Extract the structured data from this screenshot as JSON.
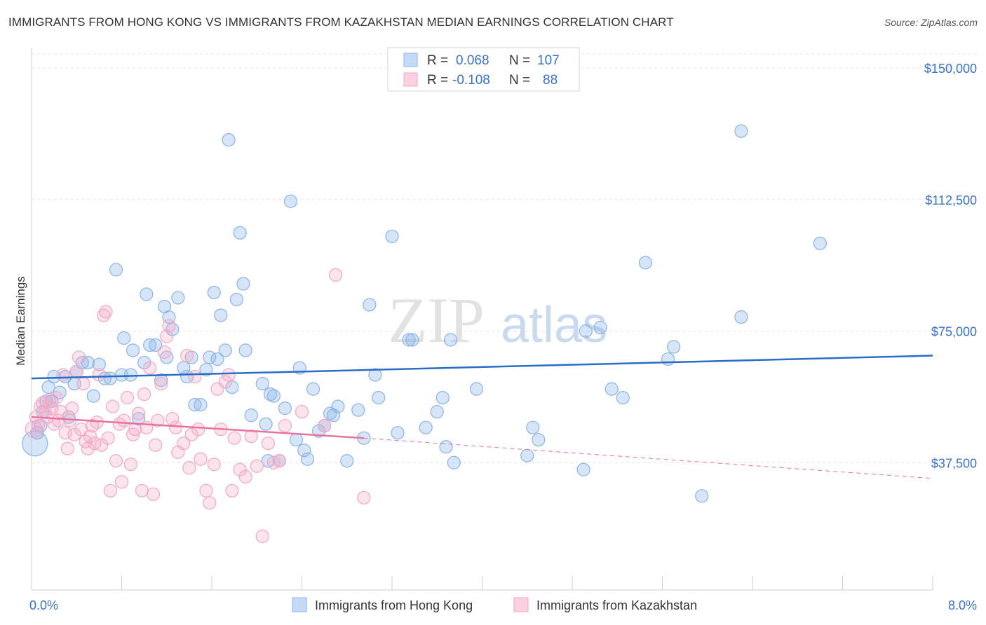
{
  "header": {
    "title": "IMMIGRANTS FROM HONG KONG VS IMMIGRANTS FROM KAZAKHSTAN MEDIAN EARNINGS CORRELATION CHART",
    "source": "Source: ZipAtlas.com"
  },
  "watermark": "ZIPatlas",
  "legend_box": {
    "rows": [
      {
        "r_label": "R =",
        "r_value": "0.068",
        "n_label": "N =",
        "n_value": "107"
      },
      {
        "r_label": "R =",
        "r_value": "-0.108",
        "n_label": "N =",
        "n_value": "88"
      }
    ]
  },
  "chart_data": {
    "type": "scatter",
    "ylabel": "Median Earnings",
    "xlim": [
      0,
      8
    ],
    "ylim": [
      0,
      155000
    ],
    "x_tick_labels": [
      {
        "x": 0,
        "label": "0.0%"
      },
      {
        "x": 8,
        "label": "8.0%"
      }
    ],
    "y_ticks": [
      {
        "y": 150000,
        "label": "$150,000"
      },
      {
        "y": 112500,
        "label": "$112,500"
      },
      {
        "y": 75000,
        "label": "$75,000"
      },
      {
        "y": 37500,
        "label": "$37,500"
      }
    ],
    "grid": true,
    "legend_position": "bottom",
    "series": [
      {
        "name": "Immigrants from Hong Kong",
        "color": "#8ab4e8",
        "trend_color": "#2a6dc9",
        "trend": {
          "x": [
            0,
            8
          ],
          "y": [
            61500,
            68000
          ]
        },
        "points": [
          [
            0.03,
            43000
          ],
          [
            0.05,
            46000
          ],
          [
            0.08,
            48000
          ],
          [
            0.1,
            52000
          ],
          [
            0.13,
            55000
          ],
          [
            0.15,
            59000
          ],
          [
            0.18,
            55000
          ],
          [
            0.2,
            62000
          ],
          [
            0.25,
            57500
          ],
          [
            0.3,
            62000
          ],
          [
            0.33,
            50500
          ],
          [
            0.38,
            60000
          ],
          [
            0.4,
            63500
          ],
          [
            0.45,
            66000
          ],
          [
            0.5,
            66000
          ],
          [
            0.55,
            56500
          ],
          [
            0.6,
            65500
          ],
          [
            0.65,
            61500
          ],
          [
            0.7,
            61500
          ],
          [
            0.75,
            92500
          ],
          [
            0.8,
            62500
          ],
          [
            0.82,
            73000
          ],
          [
            0.88,
            62500
          ],
          [
            0.9,
            69500
          ],
          [
            0.95,
            50000
          ],
          [
            1.0,
            66000
          ],
          [
            1.02,
            85500
          ],
          [
            1.05,
            71000
          ],
          [
            1.1,
            71000
          ],
          [
            1.15,
            61000
          ],
          [
            1.18,
            82000
          ],
          [
            1.2,
            67500
          ],
          [
            1.22,
            79000
          ],
          [
            1.25,
            75500
          ],
          [
            1.3,
            84500
          ],
          [
            1.35,
            64500
          ],
          [
            1.38,
            62000
          ],
          [
            1.42,
            67500
          ],
          [
            1.45,
            54000
          ],
          [
            1.5,
            54000
          ],
          [
            1.55,
            64000
          ],
          [
            1.58,
            67500
          ],
          [
            1.62,
            86000
          ],
          [
            1.65,
            67000
          ],
          [
            1.68,
            79500
          ],
          [
            1.72,
            69500
          ],
          [
            1.75,
            129500
          ],
          [
            1.78,
            59000
          ],
          [
            1.82,
            84000
          ],
          [
            1.85,
            103000
          ],
          [
            1.88,
            88500
          ],
          [
            1.9,
            69500
          ],
          [
            1.95,
            51000
          ],
          [
            2.05,
            60000
          ],
          [
            2.08,
            48500
          ],
          [
            2.1,
            38000
          ],
          [
            2.12,
            57000
          ],
          [
            2.15,
            56500
          ],
          [
            2.2,
            38000
          ],
          [
            2.25,
            53000
          ],
          [
            2.3,
            112000
          ],
          [
            2.35,
            44000
          ],
          [
            2.38,
            64500
          ],
          [
            2.42,
            41000
          ],
          [
            2.45,
            38500
          ],
          [
            2.5,
            58500
          ],
          [
            2.55,
            46500
          ],
          [
            2.6,
            48000
          ],
          [
            2.65,
            51500
          ],
          [
            2.68,
            51000
          ],
          [
            2.72,
            53500
          ],
          [
            2.8,
            38000
          ],
          [
            2.9,
            52500
          ],
          [
            2.95,
            44500
          ],
          [
            3.0,
            82500
          ],
          [
            3.05,
            62500
          ],
          [
            3.08,
            56000
          ],
          [
            3.2,
            102000
          ],
          [
            3.25,
            46000
          ],
          [
            3.35,
            72500
          ],
          [
            3.38,
            72500
          ],
          [
            3.5,
            47500
          ],
          [
            3.6,
            52000
          ],
          [
            3.65,
            56000
          ],
          [
            3.68,
            42000
          ],
          [
            3.72,
            72500
          ],
          [
            3.75,
            37500
          ],
          [
            3.95,
            58500
          ],
          [
            4.4,
            39500
          ],
          [
            4.45,
            47500
          ],
          [
            4.5,
            44000
          ],
          [
            4.9,
            35500
          ],
          [
            4.92,
            75000
          ],
          [
            5.05,
            76000
          ],
          [
            5.15,
            58500
          ],
          [
            5.25,
            56000
          ],
          [
            5.45,
            94500
          ],
          [
            5.65,
            67000
          ],
          [
            5.7,
            70500
          ],
          [
            5.95,
            28000
          ],
          [
            6.3,
            79000
          ],
          [
            6.3,
            132000
          ],
          [
            7.0,
            100000
          ]
        ]
      },
      {
        "name": "Immigrants from Kazakhstan",
        "color": "#f4a6c4",
        "trend_color": "#e8739c",
        "trend": {
          "x": [
            0,
            2.95
          ],
          "y": [
            50500,
            44500
          ]
        },
        "trend_dashed": {
          "x": [
            2.95,
            8
          ],
          "y": [
            44500,
            33000
          ]
        },
        "points": [
          [
            0.02,
            47000
          ],
          [
            0.04,
            50500
          ],
          [
            0.06,
            48000
          ],
          [
            0.08,
            53500
          ],
          [
            0.1,
            54500
          ],
          [
            0.12,
            52000
          ],
          [
            0.14,
            50500
          ],
          [
            0.16,
            55000
          ],
          [
            0.18,
            53000
          ],
          [
            0.2,
            48500
          ],
          [
            0.22,
            56000
          ],
          [
            0.24,
            49500
          ],
          [
            0.26,
            52000
          ],
          [
            0.28,
            62500
          ],
          [
            0.3,
            46000
          ],
          [
            0.32,
            41500
          ],
          [
            0.34,
            49500
          ],
          [
            0.36,
            53000
          ],
          [
            0.38,
            45500
          ],
          [
            0.4,
            63500
          ],
          [
            0.42,
            67500
          ],
          [
            0.44,
            47000
          ],
          [
            0.46,
            60000
          ],
          [
            0.48,
            43500
          ],
          [
            0.5,
            41500
          ],
          [
            0.52,
            45000
          ],
          [
            0.54,
            48000
          ],
          [
            0.56,
            43000
          ],
          [
            0.58,
            49000
          ],
          [
            0.6,
            62500
          ],
          [
            0.62,
            42500
          ],
          [
            0.64,
            79500
          ],
          [
            0.66,
            80500
          ],
          [
            0.68,
            44500
          ],
          [
            0.7,
            29500
          ],
          [
            0.72,
            53500
          ],
          [
            0.75,
            38000
          ],
          [
            0.78,
            48500
          ],
          [
            0.8,
            32000
          ],
          [
            0.82,
            49500
          ],
          [
            0.85,
            56000
          ],
          [
            0.88,
            37000
          ],
          [
            0.9,
            45500
          ],
          [
            0.92,
            47000
          ],
          [
            0.95,
            51500
          ],
          [
            0.98,
            29500
          ],
          [
            1.0,
            57000
          ],
          [
            1.02,
            47500
          ],
          [
            1.05,
            64500
          ],
          [
            1.08,
            28500
          ],
          [
            1.1,
            42500
          ],
          [
            1.12,
            49500
          ],
          [
            1.15,
            60000
          ],
          [
            1.18,
            69000
          ],
          [
            1.2,
            73500
          ],
          [
            1.22,
            76500
          ],
          [
            1.25,
            50000
          ],
          [
            1.28,
            47500
          ],
          [
            1.3,
            40500
          ],
          [
            1.35,
            43000
          ],
          [
            1.38,
            68000
          ],
          [
            1.4,
            36000
          ],
          [
            1.42,
            45500
          ],
          [
            1.45,
            62000
          ],
          [
            1.48,
            47000
          ],
          [
            1.5,
            38500
          ],
          [
            1.55,
            29500
          ],
          [
            1.58,
            26000
          ],
          [
            1.62,
            37000
          ],
          [
            1.65,
            58500
          ],
          [
            1.68,
            47000
          ],
          [
            1.72,
            60500
          ],
          [
            1.75,
            62500
          ],
          [
            1.78,
            29500
          ],
          [
            1.8,
            44500
          ],
          [
            1.85,
            35500
          ],
          [
            1.9,
            33500
          ],
          [
            1.95,
            45000
          ],
          [
            2.0,
            36500
          ],
          [
            2.05,
            16500
          ],
          [
            2.1,
            43000
          ],
          [
            2.15,
            37500
          ],
          [
            2.2,
            38000
          ],
          [
            2.25,
            48000
          ],
          [
            2.4,
            52000
          ],
          [
            2.6,
            48000
          ],
          [
            2.7,
            91000
          ],
          [
            2.95,
            27500
          ]
        ]
      }
    ]
  }
}
